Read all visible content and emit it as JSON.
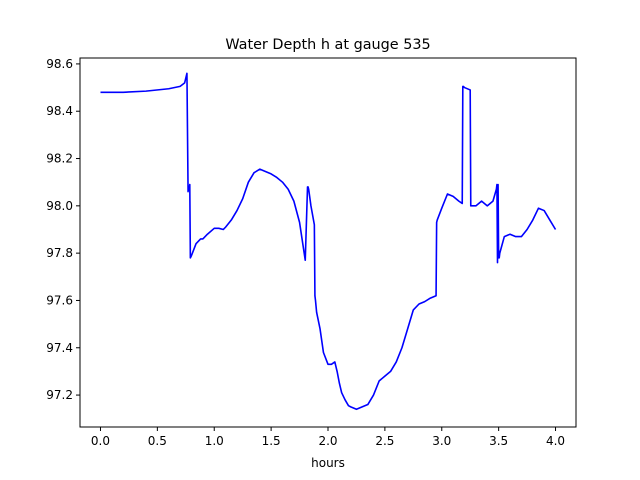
{
  "chart_data": {
    "type": "line",
    "title": "Water Depth h at gauge 535",
    "xlabel": "hours",
    "ylabel": "",
    "xlim": [
      -0.18,
      4.18
    ],
    "ylim": [
      97.065,
      98.625
    ],
    "xticks": [
      0.0,
      0.5,
      1.0,
      1.5,
      2.0,
      2.5,
      3.0,
      3.5,
      4.0
    ],
    "xtick_labels": [
      "0.0",
      "0.5",
      "1.0",
      "1.5",
      "2.0",
      "2.5",
      "3.0",
      "3.5",
      "4.0"
    ],
    "yticks": [
      97.2,
      97.4,
      97.6,
      97.8,
      98.0,
      98.2,
      98.4,
      98.6
    ],
    "ytick_labels": [
      "97.2",
      "97.4",
      "97.6",
      "97.8",
      "98.0",
      "98.2",
      "98.4",
      "98.6"
    ],
    "grid": false,
    "series": [
      {
        "color": "#0000ff",
        "x": [
          0.0,
          0.2,
          0.4,
          0.6,
          0.7,
          0.74,
          0.76,
          0.77,
          0.775,
          0.78,
          0.785,
          0.79,
          0.8,
          0.84,
          0.88,
          0.9,
          0.94,
          1.0,
          1.04,
          1.08,
          1.1,
          1.15,
          1.2,
          1.25,
          1.3,
          1.35,
          1.4,
          1.45,
          1.5,
          1.55,
          1.6,
          1.65,
          1.7,
          1.75,
          1.8,
          1.82,
          1.825,
          1.83,
          1.85,
          1.88,
          1.885,
          1.89,
          1.9,
          1.93,
          1.96,
          2.0,
          2.03,
          2.06,
          2.08,
          2.1,
          2.12,
          2.15,
          2.18,
          2.2,
          2.25,
          2.3,
          2.35,
          2.4,
          2.45,
          2.5,
          2.55,
          2.6,
          2.65,
          2.7,
          2.75,
          2.8,
          2.85,
          2.9,
          2.95,
          2.955,
          2.96,
          3.0,
          3.05,
          3.1,
          3.15,
          3.18,
          3.185,
          3.19,
          3.2,
          3.25,
          3.255,
          3.26,
          3.3,
          3.35,
          3.4,
          3.45,
          3.48,
          3.485,
          3.49,
          3.495,
          3.5,
          3.505,
          3.51,
          3.55,
          3.6,
          3.65,
          3.7,
          3.75,
          3.8,
          3.85,
          3.9,
          3.95,
          4.0
        ],
        "y": [
          98.48,
          98.48,
          98.485,
          98.495,
          98.505,
          98.52,
          98.56,
          98.06,
          98.08,
          98.07,
          98.09,
          97.78,
          97.79,
          97.84,
          97.86,
          97.86,
          97.88,
          97.905,
          97.905,
          97.9,
          97.91,
          97.94,
          97.98,
          98.03,
          98.1,
          98.14,
          98.155,
          98.145,
          98.135,
          98.12,
          98.1,
          98.07,
          98.02,
          97.93,
          97.77,
          98.08,
          98.08,
          98.07,
          98.0,
          97.92,
          97.62,
          97.6,
          97.55,
          97.48,
          97.38,
          97.33,
          97.33,
          97.34,
          97.3,
          97.25,
          97.21,
          97.18,
          97.155,
          97.15,
          97.14,
          97.15,
          97.16,
          97.2,
          97.26,
          97.28,
          97.3,
          97.34,
          97.4,
          97.48,
          97.56,
          97.585,
          97.595,
          97.61,
          97.62,
          97.93,
          97.94,
          97.99,
          98.05,
          98.04,
          98.02,
          98.01,
          98.505,
          98.505,
          98.5,
          98.49,
          98.0,
          98.0,
          98.0,
          98.02,
          98.0,
          98.02,
          98.07,
          98.09,
          97.76,
          98.09,
          97.78,
          97.78,
          97.8,
          97.87,
          97.88,
          97.87,
          97.87,
          97.9,
          97.94,
          97.99,
          97.98,
          97.94,
          97.9
        ]
      }
    ]
  }
}
